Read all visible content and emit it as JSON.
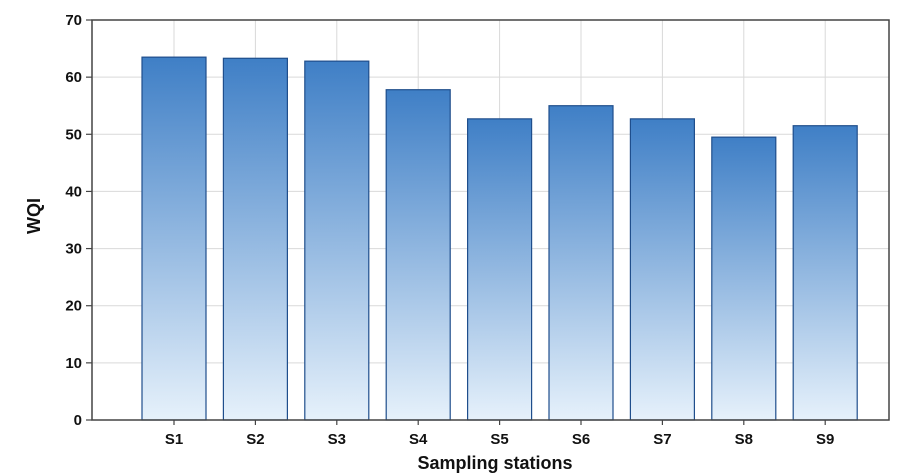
{
  "chart_data": {
    "type": "bar",
    "title": "",
    "xlabel": "Sampling stations",
    "ylabel": "WQI",
    "categories": [
      "S1",
      "S2",
      "S3",
      "S4",
      "S5",
      "S6",
      "S7",
      "S8",
      "S9"
    ],
    "values": [
      63.5,
      63.3,
      62.8,
      57.8,
      52.7,
      55.0,
      52.7,
      49.5,
      51.5
    ],
    "ylim": [
      0,
      70
    ],
    "yticks": [
      "0",
      "10",
      "20",
      "30",
      "40",
      "50",
      "60",
      "70"
    ],
    "grid": true,
    "legend": "none",
    "colors": {
      "bar_top": "#3f7fc6",
      "bar_bottom": "#e6f1fb",
      "bar_edge": "#1f4e8c",
      "grid": "#d9d9d9",
      "frame": "#444444"
    }
  }
}
